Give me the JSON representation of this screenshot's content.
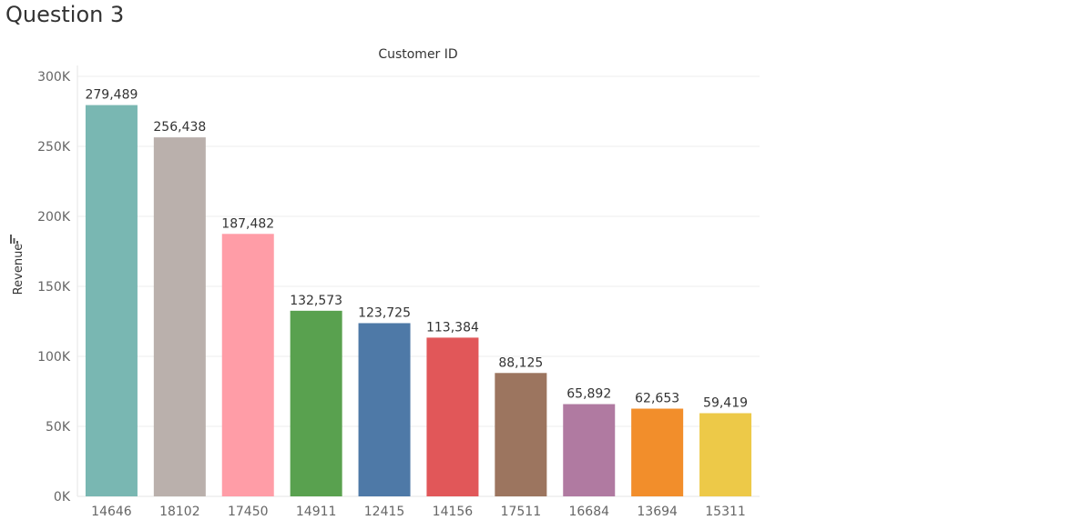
{
  "page": {
    "title": "Question 3"
  },
  "chart_data": {
    "type": "bar",
    "title": "Customer ID",
    "xlabel": "",
    "ylabel": "Revenue",
    "ylim": [
      0,
      300000
    ],
    "grid": true,
    "categories": [
      "14646",
      "18102",
      "17450",
      "14911",
      "12415",
      "14156",
      "17511",
      "16684",
      "13694",
      "15311"
    ],
    "values": [
      279489,
      256438,
      187482,
      132573,
      123725,
      113384,
      88125,
      65892,
      62653,
      59419
    ],
    "value_labels": [
      "279,489",
      "256,438",
      "187,482",
      "132,573",
      "123,725",
      "113,384",
      "88,125",
      "65,892",
      "62,653",
      "59,419"
    ],
    "yticks": [
      0,
      50000,
      100000,
      150000,
      200000,
      250000,
      300000
    ],
    "ytick_labels": [
      "0K",
      "50K",
      "100K",
      "150K",
      "200K",
      "250K",
      "300K"
    ],
    "colors": [
      "#79b7b2",
      "#bab0ac",
      "#ff9da7",
      "#59a14f",
      "#4e79a7",
      "#e15759",
      "#9c755f",
      "#b07aa1",
      "#f28e2b",
      "#edc948"
    ],
    "ylabel_icon": "sort-icon"
  }
}
